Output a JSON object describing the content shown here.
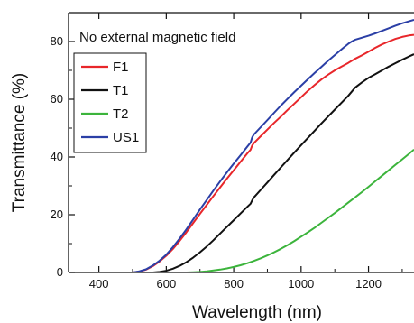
{
  "chart_data": {
    "type": "line",
    "xlabel": "Wavelength (nm)",
    "ylabel": "Transmittance (%)",
    "xlim": [
      310,
      1335
    ],
    "ylim": [
      0,
      90
    ],
    "xticks": [
      400,
      600,
      800,
      1000,
      1200
    ],
    "yticks": [
      0,
      20,
      40,
      60,
      80
    ],
    "annotation": "No external magnetic field",
    "legend_position": "top-left",
    "grid": false,
    "series": [
      {
        "name": "F1",
        "color": "#e8262a",
        "x": [
          310,
          500,
          520,
          540,
          560,
          580,
          600,
          620,
          640,
          660,
          680,
          700,
          720,
          740,
          760,
          780,
          800,
          820,
          840,
          850,
          855,
          860,
          880,
          900,
          920,
          940,
          960,
          980,
          1000,
          1020,
          1040,
          1060,
          1080,
          1100,
          1120,
          1140,
          1150,
          1160,
          1180,
          1200,
          1220,
          1240,
          1260,
          1280,
          1300,
          1320,
          1335
        ],
        "y": [
          0,
          0,
          0.3,
          1,
          2.2,
          3.8,
          5.8,
          8.2,
          11,
          14,
          17.2,
          20.3,
          23.4,
          26.5,
          29.5,
          32.5,
          35.4,
          38.3,
          41.2,
          42.5,
          44,
          44.8,
          47.2,
          49.5,
          51.8,
          54,
          56.3,
          58.5,
          60.7,
          62.9,
          64.9,
          66.8,
          68.5,
          70,
          71.3,
          72.6,
          73.3,
          74,
          75.2,
          76.5,
          77.8,
          79,
          80,
          80.9,
          81.6,
          82.1,
          82.3
        ]
      },
      {
        "name": "T1",
        "color": "#111111",
        "x": [
          310,
          560,
          580,
          600,
          620,
          640,
          660,
          680,
          700,
          720,
          740,
          760,
          780,
          800,
          820,
          840,
          850,
          855,
          860,
          880,
          900,
          920,
          940,
          960,
          980,
          1000,
          1020,
          1040,
          1060,
          1080,
          1100,
          1120,
          1140,
          1150,
          1160,
          1180,
          1200,
          1220,
          1240,
          1260,
          1280,
          1300,
          1320,
          1335
        ],
        "y": [
          0,
          0,
          0.2,
          0.6,
          1.3,
          2.3,
          3.6,
          5.2,
          7,
          9,
          11.2,
          13.5,
          15.8,
          18.1,
          20.4,
          22.7,
          23.8,
          25,
          26,
          28.6,
          31.2,
          33.8,
          36.4,
          39,
          41.6,
          44.1,
          46.6,
          49.1,
          51.6,
          54,
          56.4,
          58.8,
          61.2,
          62.6,
          64,
          65.8,
          67.4,
          68.7,
          70,
          71.3,
          72.5,
          73.7,
          74.8,
          75.6
        ]
      },
      {
        "name": "T2",
        "color": "#3cb43c",
        "x": [
          310,
          660,
          680,
          700,
          720,
          740,
          760,
          780,
          800,
          820,
          840,
          860,
          880,
          900,
          920,
          940,
          960,
          980,
          1000,
          1020,
          1040,
          1060,
          1080,
          1100,
          1120,
          1140,
          1160,
          1180,
          1200,
          1220,
          1240,
          1260,
          1280,
          1300,
          1320,
          1335
        ],
        "y": [
          0,
          0,
          0.1,
          0.2,
          0.4,
          0.7,
          1,
          1.4,
          1.9,
          2.5,
          3.2,
          4,
          4.9,
          5.9,
          7,
          8.2,
          9.5,
          10.9,
          12.4,
          13.9,
          15.5,
          17.2,
          18.9,
          20.6,
          22.4,
          24.2,
          26,
          27.8,
          29.7,
          31.6,
          33.5,
          35.4,
          37.3,
          39.2,
          41.1,
          42.6
        ]
      },
      {
        "name": "US1",
        "color": "#2b3fa6",
        "x": [
          310,
          500,
          520,
          540,
          560,
          580,
          600,
          620,
          640,
          660,
          680,
          700,
          720,
          740,
          760,
          780,
          800,
          820,
          840,
          850,
          855,
          860,
          880,
          900,
          920,
          940,
          960,
          980,
          1000,
          1020,
          1040,
          1060,
          1080,
          1100,
          1120,
          1140,
          1150,
          1160,
          1180,
          1200,
          1220,
          1240,
          1260,
          1280,
          1300,
          1320,
          1335
        ],
        "y": [
          0,
          0,
          0.4,
          1.1,
          2.4,
          4.1,
          6.2,
          8.8,
          11.8,
          15,
          18.4,
          21.8,
          25.1,
          28.4,
          31.6,
          34.7,
          37.7,
          40.6,
          43.5,
          45,
          46.8,
          47.8,
          50.3,
          52.8,
          55.3,
          57.8,
          60.2,
          62.5,
          64.7,
          66.9,
          69.1,
          71.2,
          73.3,
          75.3,
          77.3,
          79.2,
          80,
          80.6,
          81.3,
          82,
          82.8,
          83.7,
          84.6,
          85.5,
          86.3,
          87,
          87.5
        ]
      }
    ]
  }
}
